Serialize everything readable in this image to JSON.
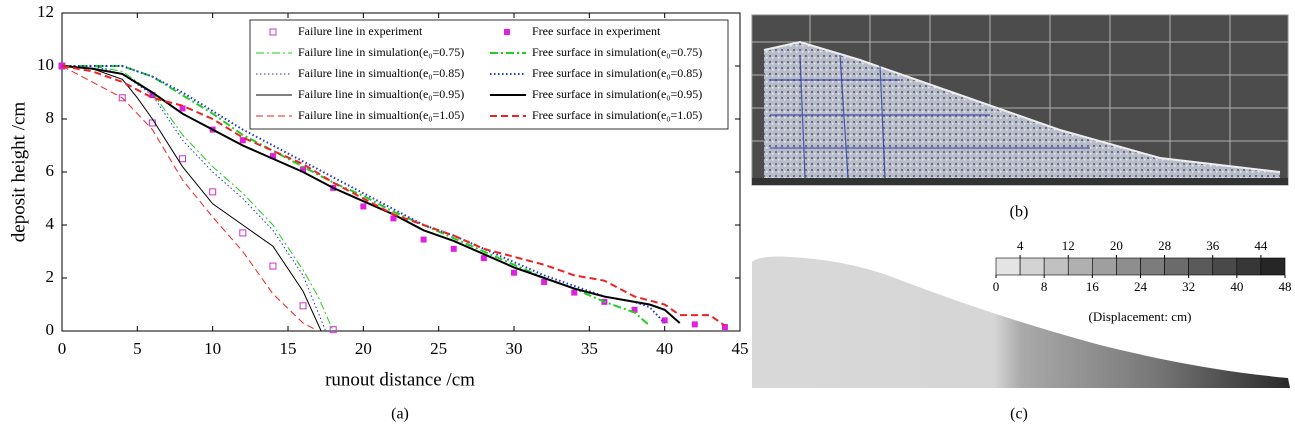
{
  "chart_data": {
    "type": "line",
    "xlabel": "runout distance /cm",
    "ylabel": "deposit height /cm",
    "caption": "(a)",
    "xlim": [
      0,
      45
    ],
    "xticks": [
      0,
      5,
      10,
      15,
      20,
      25,
      30,
      35,
      40,
      45
    ],
    "ylim": [
      0,
      12
    ],
    "yticks": [
      0,
      2,
      4,
      6,
      8,
      10,
      12
    ],
    "legend": "upper right",
    "series": [
      {
        "name": "Failure line in experiment",
        "color": "#cc33cc",
        "marker": "open-square",
        "x": [
          0,
          4,
          6,
          8,
          10,
          12,
          14,
          16,
          18
        ],
        "values": [
          10,
          8.8,
          7.85,
          6.5,
          5.25,
          3.7,
          2.45,
          0.95,
          0.05
        ]
      },
      {
        "name": "Free surface in experiment",
        "color": "#e020e0",
        "marker": "filled-square",
        "x": [
          0,
          6,
          8,
          10,
          12,
          14,
          16,
          18,
          20,
          22,
          24,
          26,
          28,
          30,
          32,
          34,
          36,
          38,
          40,
          42,
          44
        ],
        "values": [
          10,
          8.9,
          8.4,
          7.6,
          7.2,
          6.6,
          6.1,
          5.4,
          4.7,
          4.25,
          3.45,
          3.1,
          2.75,
          2.2,
          1.85,
          1.45,
          1.1,
          0.8,
          0.4,
          0.25,
          0.15
        ]
      },
      {
        "name": "Failure line in simulation(e₀=0.75)",
        "color": "#22cc22",
        "dash": "dashdot",
        "linewidth": 1,
        "x": [
          0,
          2,
          4,
          6,
          8,
          10,
          12,
          14,
          16,
          17,
          18
        ],
        "values": [
          10,
          10,
          9.8,
          9,
          7.4,
          6.2,
          5.2,
          4,
          2.3,
          1.3,
          0
        ]
      },
      {
        "name": "Free surface in simulation(e₀=0.75)",
        "color": "#22cc22",
        "dash": "dashdot",
        "linewidth": 2,
        "x": [
          0,
          4,
          6,
          8,
          10,
          12,
          14,
          16,
          18,
          20,
          22,
          24,
          26,
          28,
          30,
          32,
          34,
          36,
          38,
          39
        ],
        "values": [
          10,
          10,
          9.6,
          8.9,
          8.2,
          7.4,
          6.8,
          6.2,
          5.6,
          5.1,
          4.5,
          4,
          3.5,
          3,
          2.5,
          2,
          1.6,
          1.1,
          0.7,
          0.2
        ]
      },
      {
        "name": "Failure line in simualtion(e₀=0.85)",
        "color": "#2233cc",
        "dash": "dotted",
        "linewidth": 1,
        "x": [
          0,
          2,
          4,
          6,
          8,
          10,
          12,
          14,
          16,
          17.5
        ],
        "values": [
          10,
          10,
          9.7,
          8.9,
          7.2,
          6,
          5,
          3.8,
          2.1,
          0
        ]
      },
      {
        "name": "Free surface in simulation(e₀=0.85)",
        "color": "#2233cc",
        "dash": "dotted",
        "linewidth": 2,
        "x": [
          0,
          4,
          6,
          8,
          10,
          12,
          14,
          16,
          18,
          20,
          22,
          24,
          26,
          28,
          30,
          32,
          34,
          36,
          38,
          39,
          40
        ],
        "values": [
          10,
          10,
          9.6,
          9,
          8.3,
          7.6,
          7,
          6.4,
          5.8,
          5.2,
          4.6,
          4,
          3.6,
          3.1,
          2.6,
          2.1,
          1.7,
          1.3,
          1.1,
          0.9,
          0.3
        ]
      },
      {
        "name": "Failure line in simualtion(e₀=0.95)",
        "color": "#000000",
        "dash": "solid",
        "linewidth": 1,
        "x": [
          0,
          2,
          4,
          5,
          6,
          8,
          10,
          12,
          14,
          16,
          17.2
        ],
        "values": [
          10,
          9.9,
          9.5,
          8.8,
          8,
          6.2,
          4.8,
          4,
          3.2,
          1.5,
          0
        ]
      },
      {
        "name": "Free surface in simulation(e₀=0.95)",
        "color": "#000000",
        "dash": "solid",
        "linewidth": 2,
        "x": [
          0,
          2,
          4,
          6,
          8,
          10,
          12,
          14,
          16,
          18,
          20,
          22,
          24,
          26,
          28,
          30,
          32,
          34,
          36,
          38,
          39,
          40,
          41
        ],
        "values": [
          10,
          9.9,
          9.7,
          9,
          8.2,
          7.6,
          7,
          6.5,
          6,
          5.4,
          4.9,
          4.4,
          3.8,
          3.4,
          2.9,
          2.4,
          2,
          1.6,
          1.3,
          1.1,
          1,
          0.8,
          0.3
        ]
      },
      {
        "name": "Failure line in simualtion(e₀=1.05)",
        "color": "#ee2222",
        "dash": "dashed",
        "linewidth": 1,
        "x": [
          0,
          2,
          4,
          6,
          8,
          10,
          12,
          14,
          16,
          17
        ],
        "values": [
          10,
          9.4,
          8.8,
          7.6,
          5.7,
          4.3,
          3,
          1.4,
          0.3,
          0
        ]
      },
      {
        "name": "Free surface in simulation(e₀=1.05)",
        "color": "#ee2222",
        "dash": "dashed",
        "linewidth": 2,
        "x": [
          0,
          2,
          4,
          6,
          8,
          10,
          12,
          14,
          16,
          18,
          20,
          22,
          24,
          26,
          28,
          30,
          32,
          34,
          36,
          38,
          40,
          41,
          43,
          44
        ],
        "values": [
          10,
          9.8,
          9.4,
          8.8,
          8.5,
          8,
          7.3,
          6.8,
          6.3,
          5.6,
          5,
          4.4,
          4,
          3.6,
          3.1,
          2.8,
          2.5,
          2.1,
          1.9,
          1.3,
          1,
          0.6,
          0.6,
          0.2
        ]
      }
    ]
  },
  "photo": {
    "caption": "(b)"
  },
  "simulation": {
    "caption": "(c)",
    "colorbar": {
      "label": "(Displacement: cm)",
      "range": [
        0,
        48
      ],
      "step": 4,
      "ticks_top": [
        4,
        12,
        20,
        28,
        36,
        44
      ],
      "ticks_bottom": [
        0,
        8,
        16,
        24,
        32,
        40,
        48
      ],
      "color_range": [
        "#e4e4e4",
        "#262626"
      ]
    }
  }
}
